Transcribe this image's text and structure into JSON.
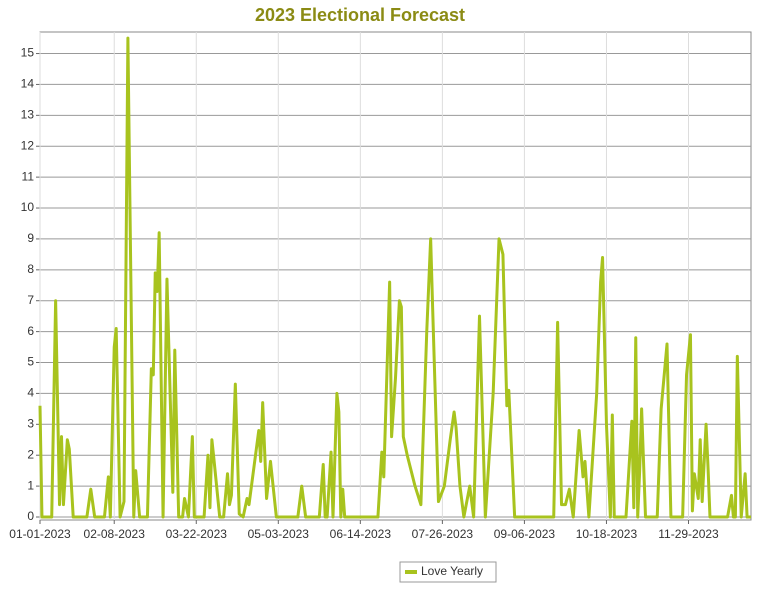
{
  "chart_data": {
    "type": "line",
    "title": "2023 Electional Forecast",
    "x": [
      "01-01-2023",
      "01-02-2023",
      "01-07-2023",
      "01-09-2023",
      "01-11-2023",
      "01-12-2023",
      "01-13-2023",
      "01-15-2023",
      "01-16-2023",
      "01-18-2023",
      "01-25-2023",
      "01-27-2023",
      "01-29-2023",
      "02-03-2023",
      "02-05-2023",
      "02-06-2023",
      "02-08-2023",
      "02-09-2023",
      "02-11-2023",
      "02-13-2023",
      "02-15-2023",
      "02-18-2023",
      "02-19-2023",
      "02-21-2023",
      "02-25-2023",
      "02-27-2023",
      "02-28-2023",
      "03-01-2023",
      "03-02-2023",
      "03-03-2023",
      "03-05-2023",
      "03-07-2023",
      "03-10-2023",
      "03-11-2023",
      "03-13-2023",
      "03-15-2023",
      "03-16-2023",
      "03-18-2023",
      "03-20-2023",
      "03-21-2023",
      "03-26-2023",
      "03-28-2023",
      "03-29-2023",
      "03-30-2023",
      "03-31-2023",
      "04-03-2023",
      "04-05-2023",
      "04-07-2023",
      "04-08-2023",
      "04-09-2023",
      "04-11-2023",
      "04-13-2023",
      "04-15-2023",
      "04-17-2023",
      "04-18-2023",
      "04-23-2023",
      "04-24-2023",
      "04-25-2023",
      "04-27-2023",
      "04-29-2023",
      "05-02-2023",
      "05-13-2023",
      "05-15-2023",
      "05-17-2023",
      "05-24-2023",
      "05-26-2023",
      "05-27-2023",
      "05-28-2023",
      "05-30-2023",
      "05-31-2023",
      "06-02-2023",
      "06-03-2023",
      "06-04-2023",
      "06-05-2023",
      "06-06-2023",
      "06-23-2023",
      "06-25-2023",
      "06-26-2023",
      "06-29-2023",
      "06-30-2023",
      "07-02-2023",
      "07-04-2023",
      "07-05-2023",
      "07-06-2023",
      "07-08-2023",
      "07-12-2023",
      "07-15-2023",
      "07-18-2023",
      "07-20-2023",
      "07-21-2023",
      "07-24-2023",
      "07-27-2023",
      "07-30-2023",
      "08-01-2023",
      "08-02-2023",
      "08-04-2023",
      "08-06-2023",
      "08-09-2023",
      "08-11-2023",
      "08-14-2023",
      "08-17-2023",
      "08-21-2023",
      "08-24-2023",
      "08-26-2023",
      "08-28-2023",
      "08-29-2023",
      "09-01-2023",
      "09-21-2023",
      "09-23-2023",
      "09-25-2023",
      "09-27-2023",
      "09-29-2023",
      "10-01-2023",
      "10-04-2023",
      "10-06-2023",
      "10-07-2023",
      "10-09-2023",
      "10-13-2023",
      "10-15-2023",
      "10-16-2023",
      "10-18-2023",
      "10-20-2023",
      "10-21-2023",
      "10-22-2023",
      "10-28-2023",
      "10-31-2023",
      "11-01-2023",
      "11-02-2023",
      "11-03-2023",
      "11-04-2023",
      "11-05-2023",
      "11-07-2023",
      "11-13-2023",
      "11-15-2023",
      "11-18-2023",
      "11-20-2023",
      "11-26-2023",
      "11-28-2023",
      "11-30-2023",
      "12-01-2023",
      "12-02-2023",
      "12-04-2023",
      "12-05-2023",
      "12-06-2023",
      "12-08-2023",
      "12-09-2023",
      "12-10-2023",
      "12-19-2023",
      "12-21-2023",
      "12-22-2023",
      "12-23-2023",
      "12-24-2023",
      "12-26-2023",
      "12-28-2023",
      "12-29-2023",
      "12-31-2023"
    ],
    "series": [
      {
        "name": "Love Yearly",
        "color": "#a8c31e",
        "values": [
          3.6,
          0,
          0,
          7.0,
          0.4,
          2.6,
          0.4,
          2.5,
          2.2,
          0,
          0,
          0.9,
          0,
          0,
          1.3,
          0,
          5.5,
          6.1,
          0,
          0.5,
          15.5,
          0,
          1.5,
          0,
          0,
          4.8,
          4.6,
          7.9,
          7.3,
          9.2,
          0,
          7.7,
          0.8,
          5.4,
          0,
          0,
          0.6,
          0,
          2.6,
          0,
          0,
          2.0,
          0.3,
          2.5,
          1.9,
          0,
          0,
          1.4,
          0.4,
          0.7,
          4.3,
          0.1,
          0,
          0.6,
          0.4,
          2.8,
          1.8,
          3.7,
          0.6,
          1.8,
          0,
          0,
          1.0,
          0,
          0,
          1.7,
          0,
          0,
          2.1,
          0,
          4.0,
          3.4,
          0,
          0.9,
          0,
          0,
          2.1,
          1.3,
          7.6,
          2.6,
          4.5,
          7.0,
          6.8,
          2.6,
          2.0,
          1.0,
          0.4,
          6.0,
          9.0,
          6.8,
          0.5,
          1.0,
          2.5,
          3.4,
          2.9,
          1.0,
          0,
          1.0,
          0,
          6.5,
          0,
          4.0,
          9.0,
          8.5,
          3.6,
          4.1,
          0,
          0,
          6.3,
          0.4,
          0.4,
          0.9,
          0,
          2.8,
          1.3,
          1.8,
          0,
          4.0,
          7.6,
          8.4,
          3.0,
          0,
          3.3,
          0,
          0,
          3.1,
          0.3,
          5.8,
          0,
          1.5,
          3.5,
          0,
          0,
          3.5,
          5.6,
          0,
          0,
          4.6,
          5.9,
          0.2,
          1.4,
          0.6,
          2.5,
          0.5,
          3.0,
          1.6,
          0,
          0,
          0.7,
          0,
          0,
          5.2,
          0,
          1.4,
          0,
          0
        ]
      }
    ],
    "xlim": [
      "01-01-2023",
      "12-31-2023"
    ],
    "xticks": [
      "01-01-2023",
      "02-08-2023",
      "03-22-2023",
      "05-03-2023",
      "06-14-2023",
      "07-26-2023",
      "09-06-2023",
      "10-18-2023",
      "11-29-2023"
    ],
    "ylim": [
      0,
      15.6
    ],
    "yticks": [
      0,
      1,
      2,
      3,
      4,
      5,
      6,
      7,
      8,
      9,
      10,
      11,
      12,
      13,
      14,
      15
    ],
    "grid": true,
    "legend": "bottom"
  }
}
